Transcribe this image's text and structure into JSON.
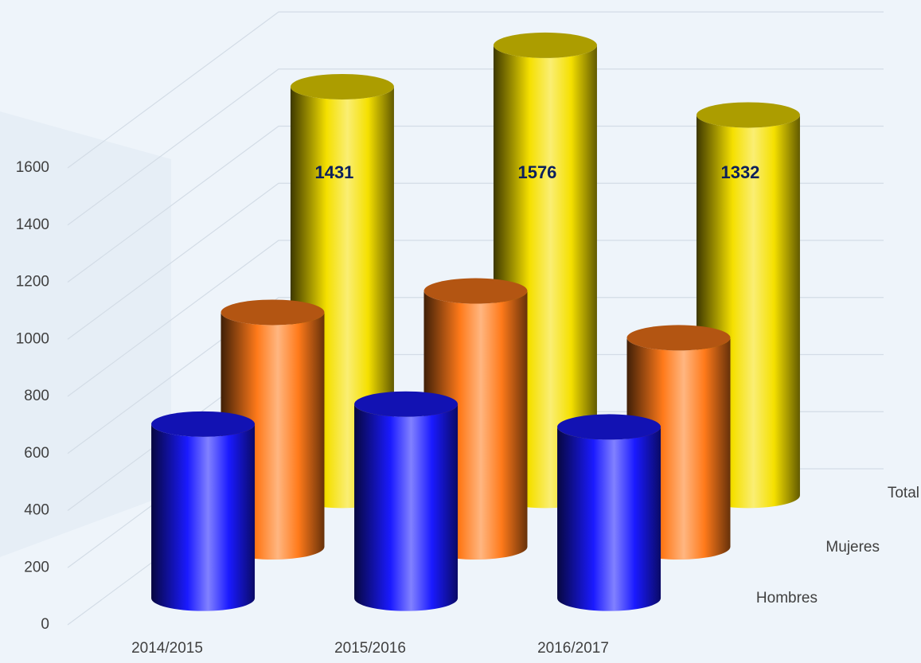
{
  "chart_data": {
    "type": "bar3d",
    "categories": [
      "2014/2015",
      "2015/2016",
      "2016/2017"
    ],
    "series": [
      {
        "name": "Hombres",
        "color": "#1a1aff",
        "values": [
          610,
          680,
          600
        ]
      },
      {
        "name": "Mujeres",
        "color": "#ff7a1a",
        "values": [
          821,
          896,
          732
        ]
      },
      {
        "name": "Total",
        "color": "#f5e000",
        "values": [
          1431,
          1576,
          1332
        ]
      }
    ],
    "data_labels_series": 2,
    "ylim": [
      0,
      1600
    ],
    "yticks": [
      0,
      200,
      400,
      600,
      800,
      1000,
      1200,
      1400,
      1600
    ],
    "grid": true
  }
}
